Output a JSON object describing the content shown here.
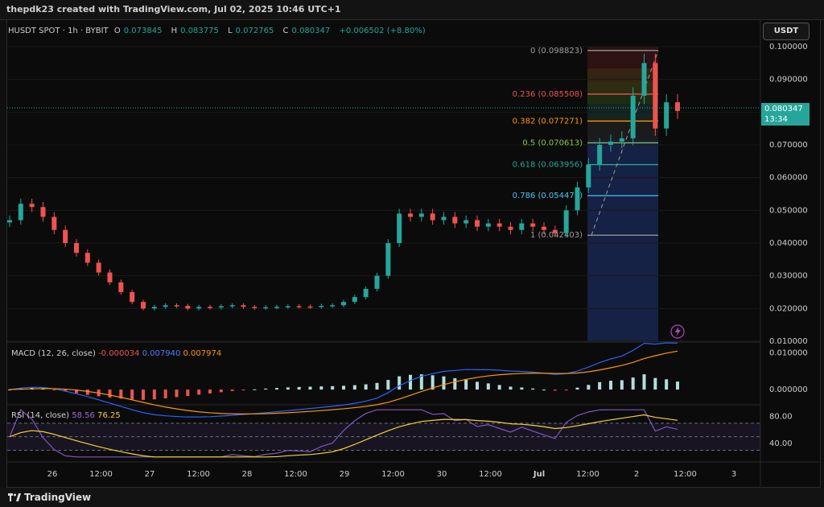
{
  "header": {
    "title": "thepdk23 created with TradingView.com, Jul 02, 2025 10:46 UTC+1"
  },
  "legend": {
    "symbol": "HUSDT SPOT · 1h · BYBIT",
    "open_label": "O",
    "open": "0.073845",
    "high_label": "H",
    "high": "0.083775",
    "low_label": "L",
    "low": "0.072765",
    "close_label": "C",
    "close": "0.080347",
    "change": "+0.006502 (+8.80%)"
  },
  "toolbar": {
    "currency_button": "USDT"
  },
  "price_tag": {
    "price": "0.080347",
    "countdown": "13:34"
  },
  "macd": {
    "label": "MACD (12, 26, close)",
    "hist": "-0.000034",
    "macd": "0.007940",
    "signal": "0.007974"
  },
  "rsi": {
    "label": "RSI (14, close)",
    "rsi": "58.56",
    "ma": "76.25"
  },
  "footer": {
    "brand": "TradingView"
  },
  "colors": {
    "up": "#26a69a",
    "down": "#ef5350",
    "macd_line": "#2962ff",
    "signal_line": "#ff9800",
    "rsi_line": "#7e57c2",
    "rsi_ma": "#f6d32d"
  },
  "chart_data": [
    {
      "type": "candlestick",
      "y_ticks": [
        "0.100000",
        "0.090000",
        "0.080000",
        "0.070000",
        "0.060000",
        "0.050000",
        "0.040000",
        "0.030000",
        "0.020000",
        "0.010000"
      ],
      "ylim": [
        0.01,
        0.1
      ],
      "x_ticks": [
        "26",
        "12:00",
        "27",
        "12:00",
        "28",
        "12:00",
        "29",
        "12:00",
        "30",
        "12:00",
        "Jul",
        "12:00",
        "2",
        "12:00",
        "3"
      ],
      "fib_levels": [
        {
          "label": "0 (0.098823)",
          "ratio": "0",
          "value": 0.098823,
          "color": "#9e9e9e"
        },
        {
          "label": "0.236 (0.085508)",
          "ratio": "0.236",
          "value": 0.085508,
          "color": "#ef5350"
        },
        {
          "label": "0.382 (0.077271)",
          "ratio": "0.382",
          "value": 0.077271,
          "color": "#ff9800"
        },
        {
          "label": "0.5 (0.070613)",
          "ratio": "0.5",
          "value": 0.070613,
          "color": "#8bc34a"
        },
        {
          "label": "0.618 (0.063956)",
          "ratio": "0.618",
          "value": 0.063956,
          "color": "#26a69a"
        },
        {
          "label": "0.786 (0.054477)",
          "ratio": "0.786",
          "value": 0.054477,
          "color": "#4fc3f7"
        },
        {
          "label": "1 (0.042403)",
          "ratio": "1",
          "value": 0.042403,
          "color": "#9e9e9e"
        }
      ],
      "close_series": [
        0.047,
        0.052,
        0.051,
        0.048,
        0.044,
        0.04,
        0.037,
        0.034,
        0.031,
        0.028,
        0.025,
        0.022,
        0.02,
        0.0205,
        0.021,
        0.0208,
        0.02,
        0.0205,
        0.0203,
        0.0207,
        0.021,
        0.0205,
        0.0202,
        0.0204,
        0.0205,
        0.0207,
        0.0206,
        0.0205,
        0.0208,
        0.021,
        0.022,
        0.0235,
        0.026,
        0.03,
        0.04,
        0.049,
        0.048,
        0.049,
        0.047,
        0.048,
        0.046,
        0.047,
        0.045,
        0.046,
        0.045,
        0.044,
        0.046,
        0.045,
        0.044,
        0.043,
        0.05,
        0.057,
        0.064,
        0.07,
        0.071,
        0.072,
        0.085,
        0.095,
        0.075,
        0.083,
        0.080347
      ]
    },
    {
      "type": "line",
      "name": "MACD",
      "y_ticks": [
        "0.010000",
        "0.000000"
      ],
      "ylim": [
        -0.0035,
        0.011
      ]
    },
    {
      "type": "line",
      "name": "RSI",
      "y_ticks": [
        "80.00",
        "40.00"
      ],
      "ylim": [
        15,
        95
      ]
    }
  ]
}
